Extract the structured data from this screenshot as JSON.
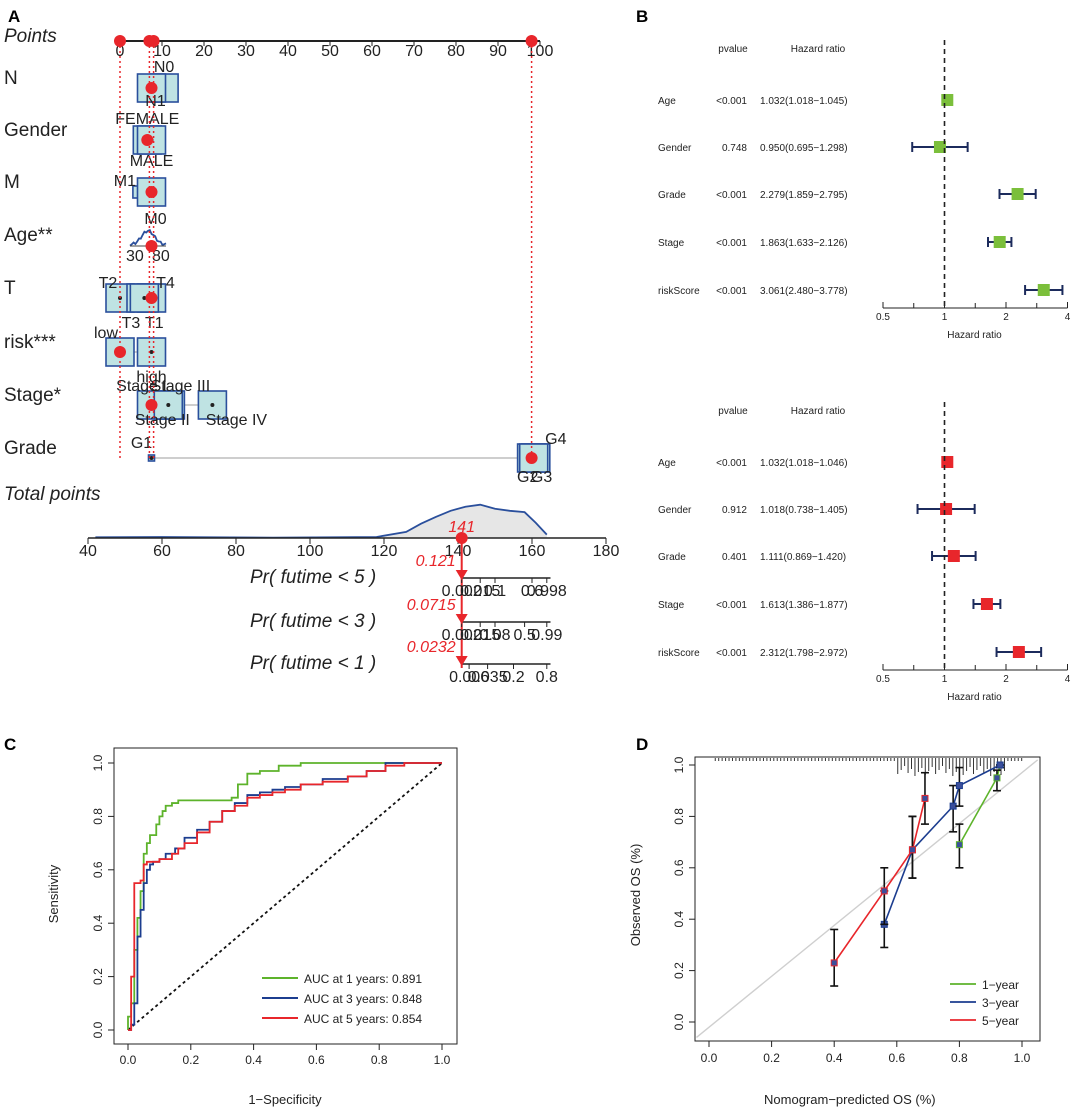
{
  "panel_labels": [
    "A",
    "B",
    "C",
    "D"
  ],
  "chart_data": [
    {
      "type": "nomogram",
      "panel": "A",
      "points_label": "Points",
      "points_ticks": [
        "0",
        "10",
        "20",
        "30",
        "40",
        "50",
        "60",
        "70",
        "80",
        "90",
        "100"
      ],
      "points_range": [
        0,
        100
      ],
      "selected_points": [
        0,
        7,
        8,
        98
      ],
      "variables": [
        {
          "name": "N",
          "levels": [
            {
              "label": "N0",
              "points": 10.5
            },
            {
              "label": "N1",
              "points": 7.5
            }
          ],
          "selected_points": 7.5
        },
        {
          "name": "Gender",
          "levels": [
            {
              "label": "FEMALE",
              "points": 6.5
            },
            {
              "label": "MALE",
              "points": 7.5
            }
          ],
          "selected_points": 6.5
        },
        {
          "name": "M",
          "levels": [
            {
              "label": "M1",
              "points": 4.5
            },
            {
              "label": "M0",
              "points": 7.5
            }
          ],
          "selected_points": 7.5
        },
        {
          "name": "Age**",
          "range": [
            30,
            80
          ],
          "tick_labels": [
            "30",
            "80"
          ],
          "selected_points": 7.5
        },
        {
          "name": "T",
          "levels": [
            {
              "label": "T2",
              "points": 0
            },
            {
              "label": "T4",
              "points": 7.5
            },
            {
              "label": "T3",
              "points": 5.0
            },
            {
              "label": "T1",
              "points": 5.8
            }
          ],
          "selected_points": 7.5
        },
        {
          "name": "risk***",
          "levels": [
            {
              "label": "low",
              "points": 0
            },
            {
              "label": "high",
              "points": 7.5
            }
          ],
          "selected_points": 0
        },
        {
          "name": "Stage*",
          "levels": [
            {
              "label": "Stage I",
              "points": 7.5
            },
            {
              "label": "Stage III",
              "points": 12
            },
            {
              "label": "Stage II",
              "points": 11.5
            },
            {
              "label": "Stage IV",
              "points": 22
            }
          ],
          "selected_points": 7.5
        },
        {
          "name": "Grade",
          "levels": [
            {
              "label": "G1",
              "points": 7.5
            },
            {
              "label": "G4",
              "points": 99
            },
            {
              "label": "G3",
              "points": 98
            },
            {
              "label": "G2",
              "points": 98.5
            }
          ],
          "selected_points": 98
        }
      ],
      "total_points_label": "Total points",
      "total_ticks": [
        "40",
        "60",
        "80",
        "100",
        "120",
        "140",
        "160",
        "180"
      ],
      "total_range": [
        40,
        180
      ],
      "total_selected": 141,
      "total_selected_label": "141",
      "density_x": [
        42,
        60,
        90,
        118,
        126,
        130,
        134,
        138,
        142,
        146,
        150,
        154,
        158,
        161,
        164
      ],
      "density_y": [
        0.02,
        0.03,
        0.01,
        0.03,
        0.18,
        0.42,
        0.62,
        0.8,
        0.92,
        0.98,
        0.86,
        0.8,
        0.76,
        0.45,
        0.1
      ],
      "probability_axes": [
        {
          "label": "Pr( futime < 5 )",
          "ticks": [
            "0.002",
            "0.015",
            "0.1",
            "0.6",
            "0.998"
          ],
          "tick_points": [
            141,
            146,
            150,
            160,
            164
          ],
          "value": 0.121,
          "value_label": "0.121"
        },
        {
          "label": "Pr( futime < 3 )",
          "ticks": [
            "0.002",
            "0.015",
            "0.08",
            "0.5",
            "0.99"
          ],
          "tick_points": [
            141,
            146,
            150,
            158,
            164
          ],
          "value": 0.0715,
          "value_label": "0.0715"
        },
        {
          "label": "Pr( futime < 1 )",
          "ticks": [
            "0.006",
            "0.035",
            "0.2",
            "0.8"
          ],
          "tick_points": [
            143,
            148,
            155,
            164
          ],
          "value": 0.0232,
          "value_label": "0.0232"
        }
      ]
    },
    {
      "type": "forest",
      "panel": "B-top",
      "columns": [
        "pvalue",
        "Hazard ratio"
      ],
      "rows": [
        {
          "name": "Age",
          "pvalue": "<0.001",
          "hr_text": "1.032(1.018−1.045)",
          "hr": 1.032,
          "lo": 1.018,
          "hi": 1.045
        },
        {
          "name": "Gender",
          "pvalue": "0.748",
          "hr_text": "0.950(0.695−1.298)",
          "hr": 0.95,
          "lo": 0.695,
          "hi": 1.298
        },
        {
          "name": "Grade",
          "pvalue": "<0.001",
          "hr_text": "2.279(1.859−2.795)",
          "hr": 2.279,
          "lo": 1.859,
          "hi": 2.795
        },
        {
          "name": "Stage",
          "pvalue": "<0.001",
          "hr_text": "1.863(1.633−2.126)",
          "hr": 1.863,
          "lo": 1.633,
          "hi": 2.126
        },
        {
          "name": "riskScore",
          "pvalue": "<0.001",
          "hr_text": "3.061(2.480−3.778)",
          "hr": 3.061,
          "lo": 2.48,
          "hi": 3.778
        }
      ],
      "xscale": "log",
      "xticks": [
        0.5,
        1,
        2,
        4
      ],
      "xtick_labels": [
        "0.5",
        "1",
        "2",
        "4"
      ],
      "xlabel": "Hazard ratio",
      "color": "#7bbf3b"
    },
    {
      "type": "forest",
      "panel": "B-bottom",
      "columns": [
        "pvalue",
        "Hazard ratio"
      ],
      "rows": [
        {
          "name": "Age",
          "pvalue": "<0.001",
          "hr_text": "1.032(1.018−1.046)",
          "hr": 1.032,
          "lo": 1.018,
          "hi": 1.046
        },
        {
          "name": "Gender",
          "pvalue": "0.912",
          "hr_text": "1.018(0.738−1.405)",
          "hr": 1.018,
          "lo": 0.738,
          "hi": 1.405
        },
        {
          "name": "Grade",
          "pvalue": "0.401",
          "hr_text": "1.111(0.869−1.420)",
          "hr": 1.111,
          "lo": 0.869,
          "hi": 1.42
        },
        {
          "name": "Stage",
          "pvalue": "<0.001",
          "hr_text": "1.613(1.386−1.877)",
          "hr": 1.613,
          "lo": 1.386,
          "hi": 1.877
        },
        {
          "name": "riskScore",
          "pvalue": "<0.001",
          "hr_text": "2.312(1.798−2.972)",
          "hr": 2.312,
          "lo": 1.798,
          "hi": 2.972
        }
      ],
      "xscale": "log",
      "xticks": [
        0.5,
        1,
        2,
        4
      ],
      "xtick_labels": [
        "0.5",
        "1",
        "2",
        "4"
      ],
      "xlabel": "Hazard ratio",
      "color": "#e8262b"
    },
    {
      "type": "line",
      "panel": "C",
      "title": "",
      "xlabel": "1−Specificity",
      "ylabel": "Sensitivity",
      "xlim": [
        0,
        1
      ],
      "ylim": [
        0,
        1
      ],
      "ticks": [
        0,
        0.2,
        0.4,
        0.6,
        0.8,
        1.0
      ],
      "tick_labels": [
        "0.0",
        "0.2",
        "0.4",
        "0.6",
        "0.8",
        "1.0"
      ],
      "series": [
        {
          "name": "AUC at 1 years: 0.891",
          "color": "#5db32b",
          "x": [
            0,
            0,
            0.01,
            0.01,
            0.02,
            0.03,
            0.04,
            0.05,
            0.05,
            0.06,
            0.07,
            0.09,
            0.1,
            0.11,
            0.12,
            0.14,
            0.16,
            0.2,
            0.25,
            0.3,
            0.33,
            0.35,
            0.38,
            0.42,
            0.48,
            0.55,
            0.62,
            0.68,
            0.75,
            0.82,
            0.88,
            0.94,
            1.0
          ],
          "y": [
            0,
            0.05,
            0.08,
            0.1,
            0.3,
            0.42,
            0.52,
            0.58,
            0.66,
            0.7,
            0.73,
            0.77,
            0.8,
            0.82,
            0.84,
            0.85,
            0.86,
            0.86,
            0.86,
            0.86,
            0.87,
            0.92,
            0.96,
            0.97,
            0.99,
            1.0,
            1.0,
            1.0,
            1.0,
            1.0,
            1.0,
            1.0,
            1.0
          ]
        },
        {
          "name": "AUC at 3 years: 0.848",
          "color": "#1c3d8f",
          "x": [
            0,
            0.01,
            0.02,
            0.03,
            0.03,
            0.04,
            0.05,
            0.06,
            0.07,
            0.08,
            0.1,
            0.12,
            0.15,
            0.18,
            0.22,
            0.26,
            0.3,
            0.34,
            0.38,
            0.42,
            0.46,
            0.5,
            0.55,
            0.62,
            0.7,
            0.76,
            0.82,
            0.88,
            0.94,
            1.0
          ],
          "y": [
            0,
            0.02,
            0.1,
            0.2,
            0.35,
            0.45,
            0.55,
            0.6,
            0.62,
            0.63,
            0.64,
            0.66,
            0.68,
            0.72,
            0.75,
            0.78,
            0.82,
            0.85,
            0.88,
            0.89,
            0.9,
            0.91,
            0.92,
            0.94,
            0.95,
            0.97,
            1.0,
            1.0,
            1.0,
            1.0
          ]
        },
        {
          "name": "AUC at 5 years: 0.854",
          "color": "#e8262b",
          "x": [
            0,
            0.01,
            0.01,
            0.02,
            0.03,
            0.04,
            0.05,
            0.06,
            0.08,
            0.1,
            0.12,
            0.14,
            0.16,
            0.18,
            0.22,
            0.26,
            0.3,
            0.34,
            0.38,
            0.42,
            0.46,
            0.5,
            0.55,
            0.62,
            0.7,
            0.76,
            0.82,
            0.88,
            0.94,
            1.0
          ],
          "y": [
            0,
            0.02,
            0.2,
            0.55,
            0.55,
            0.56,
            0.62,
            0.63,
            0.63,
            0.64,
            0.64,
            0.66,
            0.68,
            0.7,
            0.74,
            0.78,
            0.82,
            0.84,
            0.87,
            0.88,
            0.89,
            0.9,
            0.92,
            0.93,
            0.95,
            0.97,
            0.99,
            1.0,
            1.0,
            1.0
          ]
        }
      ],
      "reference": "diagonal",
      "legend": "bottom-right"
    },
    {
      "type": "line",
      "panel": "D",
      "xlabel": "Nomogram−predicted OS (%)",
      "ylabel": "Observed OS (%)",
      "xlim": [
        -0.02,
        1.05
      ],
      "ylim": [
        -0.02,
        1.02
      ],
      "ticks": [
        0,
        0.2,
        0.4,
        0.6,
        0.8,
        1.0
      ],
      "tick_labels": [
        "0.0",
        "0.2",
        "0.4",
        "0.6",
        "0.8",
        "1.0"
      ],
      "series": [
        {
          "name": "1−year",
          "color": "#5db32b",
          "x": [
            0.8,
            0.92,
            0.93
          ],
          "y": [
            0.69,
            0.95,
            1.0
          ],
          "err_lo": [
            0.6,
            0.9,
            0.99
          ],
          "err_hi": [
            0.77,
            0.98,
            1.0
          ]
        },
        {
          "name": "3−year",
          "color": "#1c3d8f",
          "x": [
            0.56,
            0.65,
            0.78,
            0.8,
            0.93
          ],
          "y": [
            0.38,
            0.67,
            0.84,
            0.92,
            1.0
          ],
          "err_lo": [
            0.29,
            0.56,
            0.74,
            0.84,
            0.99
          ],
          "err_hi": [
            0.51,
            0.8,
            0.92,
            0.99,
            1.0
          ]
        },
        {
          "name": "5−year",
          "color": "#e8262b",
          "x": [
            0.4,
            0.56,
            0.65,
            0.69
          ],
          "y": [
            0.23,
            0.51,
            0.67,
            0.87
          ],
          "err_lo": [
            0.14,
            0.38,
            0.56,
            0.77
          ],
          "err_hi": [
            0.36,
            0.6,
            0.8,
            0.97
          ]
        }
      ],
      "reference": "diagonal",
      "legend": "bottom-right"
    }
  ]
}
